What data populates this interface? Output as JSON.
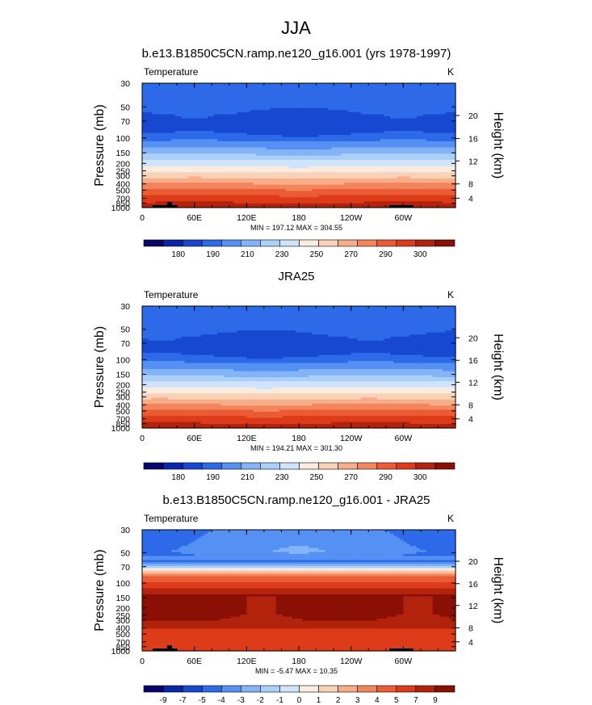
{
  "main_title": "JJA",
  "units_label": "K",
  "variable_label": "Temperature",
  "y_left_label": "Pressure (mb)",
  "y_right_label": "Height (km)",
  "pressure_ticks": [
    "30",
    "50",
    "70",
    "100",
    "150",
    "200",
    "250",
    "300",
    "400",
    "500",
    "700",
    "850",
    "1000"
  ],
  "height_ticks": [
    "20",
    "16",
    "12",
    "8",
    "4"
  ],
  "lon_ticks": [
    "0",
    "60E",
    "120E",
    "180",
    "120W",
    "60W"
  ],
  "chart_data": [
    {
      "type": "heatmap",
      "title": "b.e13.B1850C5CN.ramp.ne120_g16.001 (yrs 1978-1997)",
      "stats": "MIN = 197.12  MAX = 304.55",
      "min": 197.12,
      "max": 304.55,
      "colorbar_colors": [
        "#08056b",
        "#0b24a8",
        "#1748d2",
        "#2c6ae9",
        "#5590f3",
        "#84b3f8",
        "#aacff9",
        "#cfe3fa",
        "#f9ebdf",
        "#f8d1b6",
        "#f7ae88",
        "#f3855c",
        "#eb5c34",
        "#dd3b1a",
        "#b3220d",
        "#8a0f05"
      ],
      "colorbar_labels": [
        "180",
        "190",
        "210",
        "230",
        "250",
        "270",
        "290",
        "300"
      ],
      "field": "temperature",
      "mask_topography": true
    },
    {
      "type": "heatmap",
      "title": "JRA25",
      "stats": "MIN = 194.21  MAX = 301.30",
      "min": 194.21,
      "max": 301.3,
      "colorbar_colors": [
        "#08056b",
        "#0b24a8",
        "#1748d2",
        "#2c6ae9",
        "#5590f3",
        "#84b3f8",
        "#aacff9",
        "#cfe3fa",
        "#f9ebdf",
        "#f8d1b6",
        "#f7ae88",
        "#f3855c",
        "#eb5c34",
        "#dd3b1a",
        "#b3220d",
        "#8a0f05"
      ],
      "colorbar_labels": [
        "180",
        "190",
        "210",
        "230",
        "250",
        "270",
        "290",
        "300"
      ],
      "field": "temperature",
      "mask_topography": false
    },
    {
      "type": "heatmap",
      "title": "b.e13.B1850C5CN.ramp.ne120_g16.001 - JRA25",
      "stats": "MIN = -5.47  MAX = 10.35",
      "min": -5.47,
      "max": 10.35,
      "colorbar_colors": [
        "#08056b",
        "#0b24a8",
        "#1748d2",
        "#2c6ae9",
        "#5590f3",
        "#84b3f8",
        "#aacff9",
        "#cfe3fa",
        "#f9ebdf",
        "#f8d1b6",
        "#f7ae88",
        "#f3855c",
        "#eb5c34",
        "#dd3b1a",
        "#b3220d",
        "#8a0f05"
      ],
      "colorbar_labels": [
        "-9",
        "-7",
        "-5",
        "-4",
        "-3",
        "-2",
        "-1",
        "0",
        "1",
        "2",
        "3",
        "4",
        "5",
        "7",
        "9"
      ],
      "field": "difference",
      "mask_topography": true
    }
  ]
}
